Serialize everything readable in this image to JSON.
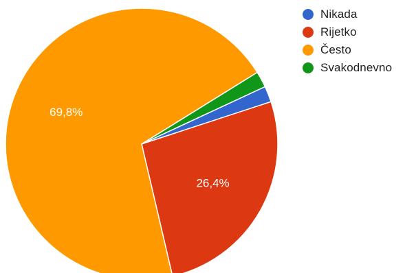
{
  "chart_data": {
    "type": "pie",
    "title": "",
    "categories": [
      "Nikada",
      "Rijetko",
      "Često",
      "Svakodnevno"
    ],
    "values": [
      1.9,
      26.4,
      69.8,
      1.9
    ],
    "data_labels": [
      "",
      "26,4%",
      "69,8%",
      ""
    ],
    "colors": [
      "#3366cc",
      "#dc3912",
      "#ff9900",
      "#109618"
    ],
    "legend": {
      "placement": "right",
      "items": [
        {
          "label": "Nikada",
          "color": "#3366cc"
        },
        {
          "label": "Rijetko",
          "color": "#dc3912"
        },
        {
          "label": "Često",
          "color": "#ff9900"
        },
        {
          "label": "Svakodnevno",
          "color": "#109618"
        }
      ]
    }
  }
}
